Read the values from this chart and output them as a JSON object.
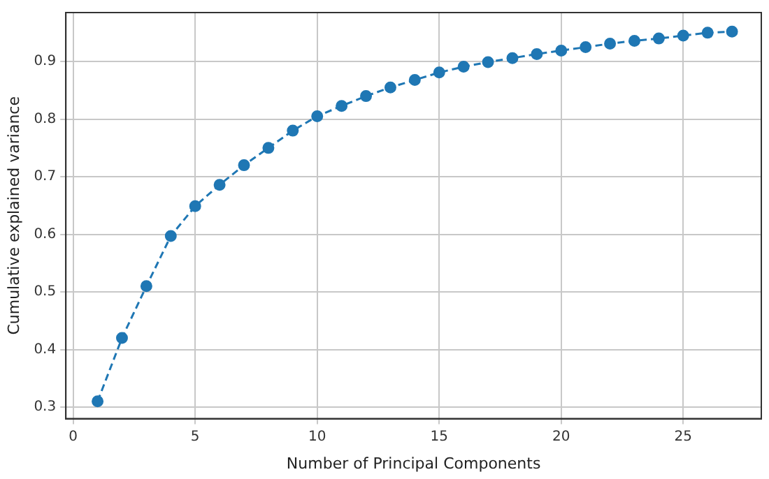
{
  "chart_data": {
    "type": "line",
    "xlabel": "Number of Principal Components",
    "ylabel": "Cumulative explained variance",
    "x": [
      1,
      2,
      3,
      4,
      5,
      6,
      7,
      8,
      9,
      10,
      11,
      12,
      13,
      14,
      15,
      16,
      17,
      18,
      19,
      20,
      21,
      22,
      23,
      24,
      25,
      26,
      27
    ],
    "series": [
      {
        "color": "#1f77b4",
        "values": [
          0.31,
          0.42,
          0.51,
          0.597,
          0.649,
          0.686,
          0.72,
          0.75,
          0.78,
          0.805,
          0.823,
          0.84,
          0.855,
          0.868,
          0.881,
          0.891,
          0.899,
          0.906,
          0.913,
          0.919,
          0.925,
          0.931,
          0.936,
          0.94,
          0.945,
          0.95,
          0.952
        ]
      }
    ],
    "xlim": [
      -0.3,
      28.2
    ],
    "xticks": [
      0,
      5,
      10,
      15,
      20,
      25
    ],
    "ylim": [
      0.28,
      0.985
    ],
    "yticks": [
      0.3,
      0.4,
      0.5,
      0.6,
      0.7,
      0.8,
      0.9
    ],
    "grid": true,
    "legend": false,
    "marker": "circle",
    "line_style": "dashed"
  }
}
